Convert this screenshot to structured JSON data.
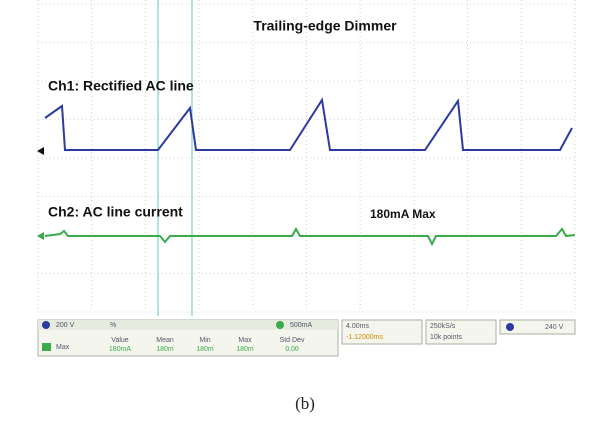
{
  "screen": {
    "title": "Trailing-edge Dimmer",
    "ch1_label": "Ch1: Rectified AC line",
    "ch2_label": "Ch2: AC line current",
    "annotation": "180mA Max",
    "status": {
      "ch1_scale": "200 V",
      "ch1_unit": "%",
      "ch2_scale": "500mA",
      "timebase": "4.00ms",
      "delay": "-1.12000ms",
      "sample_rate": "250kS/s",
      "points": "10k points",
      "trigger": "240 V",
      "measure_name": "Max",
      "headers": [
        "Value",
        "Mean",
        "Min",
        "Max",
        "Std Dev"
      ],
      "measure_values": [
        "180mA",
        "180m",
        "180m",
        "180m",
        "0.00"
      ]
    }
  },
  "caption": "(b)"
}
